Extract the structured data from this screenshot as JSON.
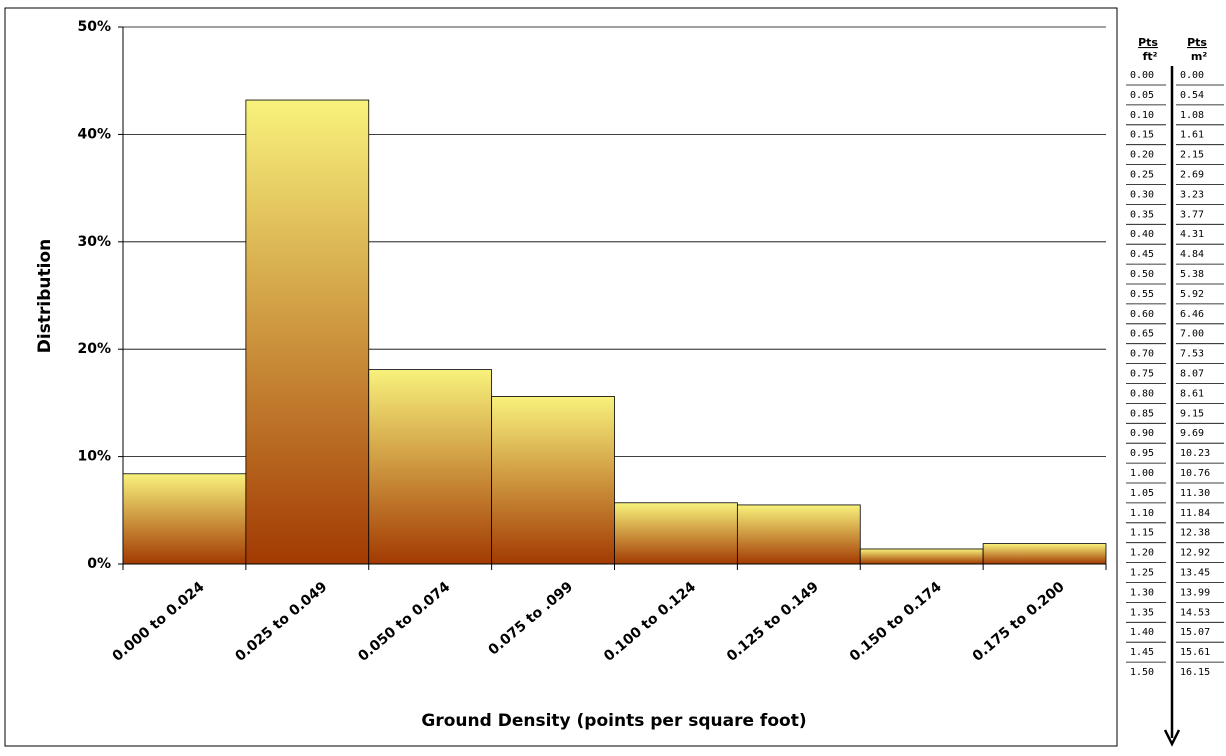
{
  "chart_data": {
    "type": "bar",
    "y_axis_title": "Distribution",
    "x_axis_title": "Ground Density (points per square foot)",
    "categories": [
      "0.000 to 0.024",
      "0.025 to 0.049",
      "0.050 to 0.074",
      "0.075 to .099",
      "0.100 to 0.124",
      "0.125 to 0.149",
      "0.150 to 0.174",
      "0.175 to 0.200"
    ],
    "values": [
      8.4,
      43.2,
      18.1,
      15.6,
      5.7,
      5.5,
      1.4,
      1.9
    ],
    "gradient": [
      "#f8f27c",
      "#a23a02"
    ],
    "ylim": [
      0,
      50
    ],
    "yticks": [
      {
        "value": 0,
        "label": "0%"
      },
      {
        "value": 10,
        "label": "10%"
      },
      {
        "value": 20,
        "label": "20%"
      },
      {
        "value": 30,
        "label": "30%"
      },
      {
        "value": 40,
        "label": "40%"
      },
      {
        "value": 50,
        "label": "50%"
      }
    ],
    "grid": true
  },
  "conversion_table": {
    "headers": [
      [
        "Pts",
        "ft²"
      ],
      [
        "Pts",
        "m²"
      ]
    ],
    "rows": [
      [
        "0.00",
        "0.00"
      ],
      [
        "0.05",
        "0.54"
      ],
      [
        "0.10",
        "1.08"
      ],
      [
        "0.15",
        "1.61"
      ],
      [
        "0.20",
        "2.15"
      ],
      [
        "0.25",
        "2.69"
      ],
      [
        "0.30",
        "3.23"
      ],
      [
        "0.35",
        "3.77"
      ],
      [
        "0.40",
        "4.31"
      ],
      [
        "0.45",
        "4.84"
      ],
      [
        "0.50",
        "5.38"
      ],
      [
        "0.55",
        "5.92"
      ],
      [
        "0.60",
        "6.46"
      ],
      [
        "0.65",
        "7.00"
      ],
      [
        "0.70",
        "7.53"
      ],
      [
        "0.75",
        "8.07"
      ],
      [
        "0.80",
        "8.61"
      ],
      [
        "0.85",
        "9.15"
      ],
      [
        "0.90",
        "9.69"
      ],
      [
        "0.95",
        "10.23"
      ],
      [
        "1.00",
        "10.76"
      ],
      [
        "1.05",
        "11.30"
      ],
      [
        "1.10",
        "11.84"
      ],
      [
        "1.15",
        "12.38"
      ],
      [
        "1.20",
        "12.92"
      ],
      [
        "1.25",
        "13.45"
      ],
      [
        "1.30",
        "13.99"
      ],
      [
        "1.35",
        "14.53"
      ],
      [
        "1.40",
        "15.07"
      ],
      [
        "1.45",
        "15.61"
      ],
      [
        "1.50",
        "16.15"
      ]
    ]
  }
}
